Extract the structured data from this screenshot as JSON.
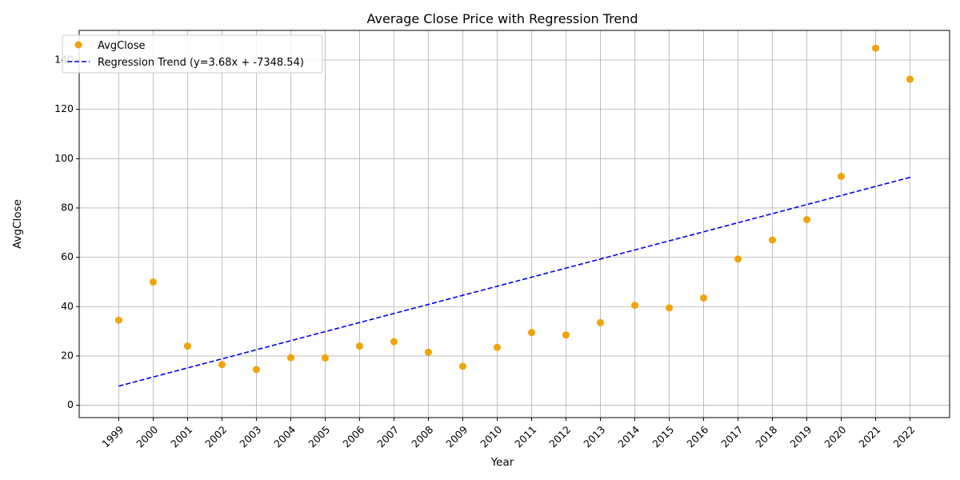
{
  "chart_data": {
    "type": "scatter",
    "title": "Average Close Price with Regression Trend",
    "xlabel": "Year",
    "ylabel": "AvgClose",
    "x": [
      1999,
      2000,
      2001,
      2002,
      2003,
      2004,
      2005,
      2006,
      2007,
      2008,
      2009,
      2010,
      2011,
      2012,
      2013,
      2014,
      2015,
      2016,
      2017,
      2018,
      2019,
      2020,
      2021,
      2022
    ],
    "x_tick_labels": [
      "1999",
      "2000",
      "2001",
      "2002",
      "2003",
      "2004",
      "2005",
      "2006",
      "2007",
      "2008",
      "2009",
      "2010",
      "2011",
      "2012",
      "2013",
      "2014",
      "2015",
      "2016",
      "2017",
      "2018",
      "2019",
      "2020",
      "2021",
      "2022"
    ],
    "y_ticks": [
      0,
      20,
      40,
      60,
      80,
      100,
      120,
      140
    ],
    "y_tick_labels": [
      "0",
      "20",
      "40",
      "60",
      "80",
      "100",
      "120",
      "140"
    ],
    "xlim": [
      1997.85,
      2023.15
    ],
    "ylim": [
      -5,
      152
    ],
    "grid": true,
    "legend_position": "top-left",
    "series": [
      {
        "name": "AvgClose",
        "kind": "scatter",
        "color": "#f0a30a",
        "values": [
          34.5,
          50.0,
          24.0,
          16.5,
          14.5,
          19.3,
          19.2,
          24.0,
          25.8,
          21.5,
          15.8,
          23.5,
          29.5,
          28.5,
          33.5,
          40.5,
          39.5,
          43.5,
          59.3,
          67.0,
          75.3,
          92.8,
          144.8,
          132.2
        ]
      },
      {
        "name": "Regression Trend (y=3.68x + -7348.54)",
        "kind": "line",
        "color": "#0000ee",
        "linestyle": "dashed",
        "slope": 3.68,
        "intercept": -7348.54,
        "x_range": [
          1999,
          2022
        ]
      }
    ]
  }
}
